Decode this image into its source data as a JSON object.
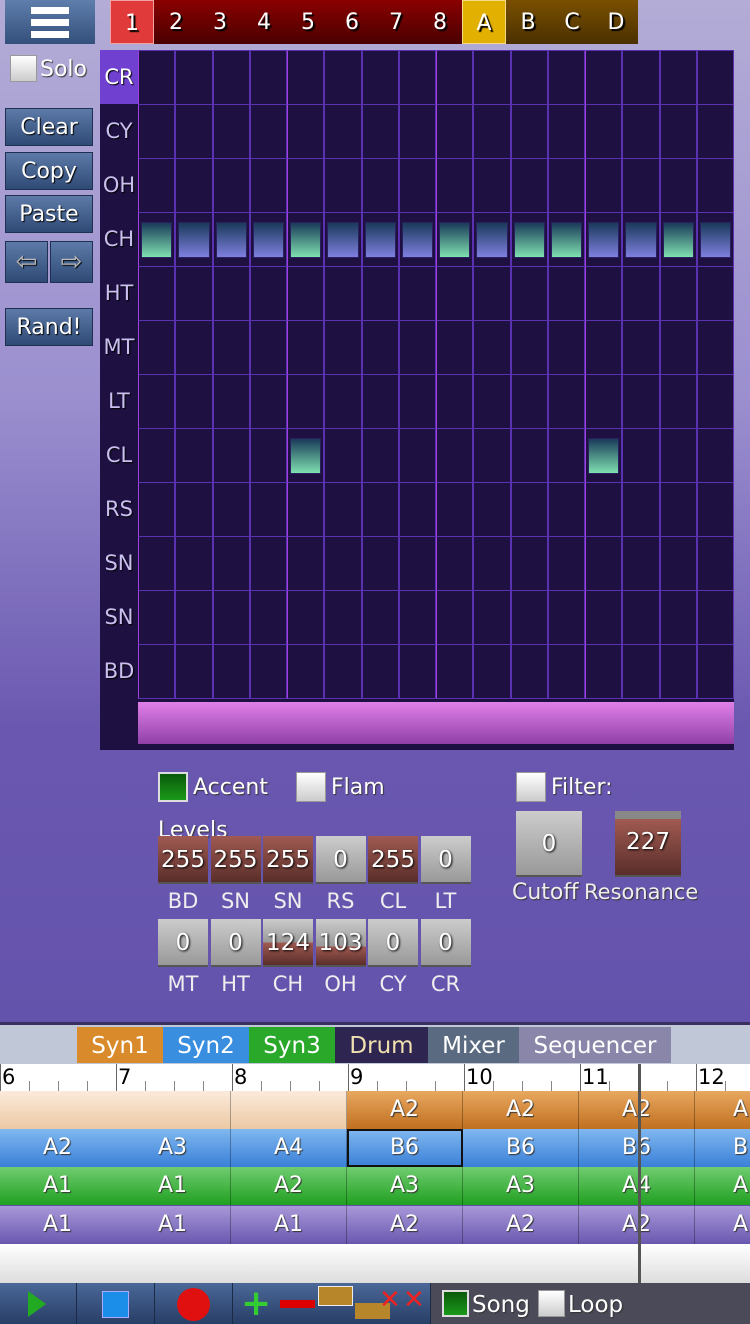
{
  "menu": {
    "icon": "hamburger-menu-icon"
  },
  "pattern_tabs": [
    {
      "label": "1",
      "active": true,
      "color": "#e03a3a"
    },
    {
      "label": "2"
    },
    {
      "label": "3"
    },
    {
      "label": "4"
    },
    {
      "label": "5"
    },
    {
      "label": "6"
    },
    {
      "label": "7"
    },
    {
      "label": "8"
    },
    {
      "label": "A",
      "active": true,
      "color": "#e2b000"
    },
    {
      "label": "B"
    },
    {
      "label": "C"
    },
    {
      "label": "D"
    }
  ],
  "left": {
    "solo": "Solo",
    "clear": "Clear",
    "copy": "Copy",
    "paste": "Paste",
    "rand": "Rand!"
  },
  "drum_grid": {
    "rows": [
      "CR",
      "CY",
      "OH",
      "CH",
      "HT",
      "MT",
      "LT",
      "CL",
      "RS",
      "SN",
      "SN",
      "BD"
    ],
    "selected_row": "CR",
    "steps": {
      "CH": [
        "accent",
        "on",
        "on",
        "on",
        "accent",
        "on",
        "on",
        "on",
        "accent",
        "on",
        "accent",
        "accent",
        "on",
        "on",
        "accent",
        "on"
      ],
      "CL": [
        null,
        null,
        null,
        null,
        "accent",
        null,
        null,
        null,
        null,
        null,
        null,
        null,
        "accent",
        null,
        null,
        null
      ]
    },
    "colors": {
      "accent": "#7fe0b0",
      "on": "#7f7fe0"
    }
  },
  "options": {
    "accent": "Accent",
    "accent_checked": true,
    "flam": "Flam",
    "flam_checked": false,
    "filter": "Filter:",
    "filter_checked": false
  },
  "levels": {
    "title": "Levels",
    "row1": [
      {
        "name": "BD",
        "value": "255"
      },
      {
        "name": "SN",
        "value": "255"
      },
      {
        "name": "SN",
        "value": "255"
      },
      {
        "name": "RS",
        "value": "0"
      },
      {
        "name": "CL",
        "value": "255"
      },
      {
        "name": "LT",
        "value": "0"
      }
    ],
    "row2": [
      {
        "name": "MT",
        "value": "0"
      },
      {
        "name": "HT",
        "value": "0"
      },
      {
        "name": "CH",
        "value": "124"
      },
      {
        "name": "OH",
        "value": "103"
      },
      {
        "name": "CY",
        "value": "0"
      },
      {
        "name": "CR",
        "value": "0"
      }
    ]
  },
  "filter": {
    "cutoff_label": "Cutoff",
    "cutoff": "0",
    "resonance_label": "Resonance",
    "resonance": "227"
  },
  "instrument_tabs": [
    {
      "label": "Syn1",
      "color": "#d98a2a"
    },
    {
      "label": "Syn2",
      "color": "#3a8ee0"
    },
    {
      "label": "Syn3",
      "color": "#2aa82a"
    },
    {
      "label": "Drum",
      "color": "#2e2650",
      "active": true
    },
    {
      "label": "Mixer",
      "color": "#5a6a80"
    },
    {
      "label": "Sequencer",
      "color": "#8a86aa"
    }
  ],
  "ruler": [
    "6",
    "7",
    "8",
    "9",
    "10",
    "11",
    "12"
  ],
  "tracks": {
    "syn1": [
      "",
      "",
      "",
      "A2",
      "A2",
      "A2",
      "A"
    ],
    "syn2": [
      "A2",
      "A3",
      "A4",
      "B6",
      "B6",
      "B6",
      "B"
    ],
    "syn3": [
      "A1",
      "A1",
      "A2",
      "A3",
      "A3",
      "A4",
      "A"
    ],
    "drum": [
      "A1",
      "A1",
      "A1",
      "A2",
      "A2",
      "A2",
      "A"
    ]
  },
  "toolbar": {
    "song": "Song",
    "song_checked": true,
    "loop": "Loop",
    "loop_checked": false
  }
}
